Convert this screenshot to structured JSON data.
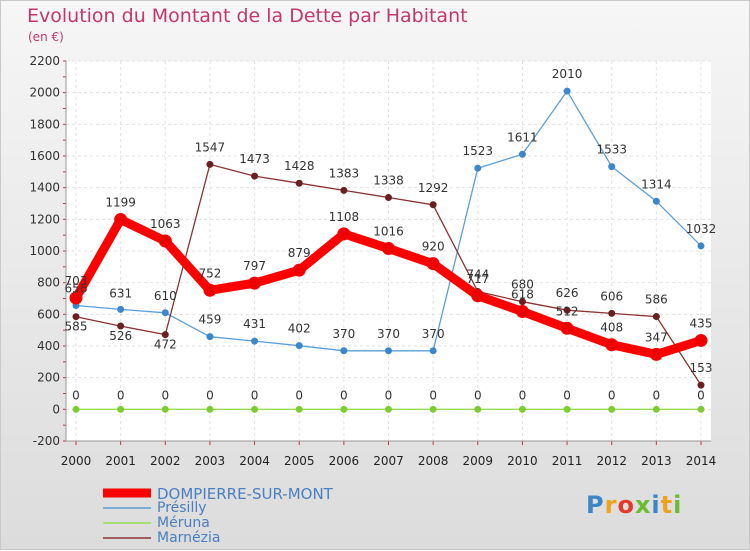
{
  "header": {
    "title": "Evolution du Montant de la Dette par Habitant",
    "unit": "(en €)"
  },
  "brand": {
    "logo_text": "Proxiti"
  },
  "chart_data": {
    "type": "line",
    "x": [
      "2000",
      "2001",
      "2002",
      "2003",
      "2004",
      "2005",
      "2006",
      "2007",
      "2008",
      "2009",
      "2010",
      "2011",
      "2012",
      "2013",
      "2014"
    ],
    "ylim": [
      -200,
      2200
    ],
    "yticks": [
      -200,
      0,
      200,
      400,
      600,
      800,
      1000,
      1200,
      1400,
      1600,
      1800,
      2000,
      2200
    ],
    "grid": true,
    "legend_position": "bottom-left",
    "series": [
      {
        "name": "DOMPIERRE-SUR-MONT",
        "color": "#ff0000",
        "marker": "#ee0000",
        "values": [
          703,
          1199,
          1063,
          752,
          797,
          879,
          1108,
          1016,
          920,
          717,
          618,
          512,
          408,
          347,
          435
        ]
      },
      {
        "name": "Présilly",
        "color": "#5c9fd6",
        "marker": "#3c86cc",
        "values": [
          656,
          631,
          610,
          459,
          431,
          402,
          370,
          370,
          370,
          1523,
          1611,
          2010,
          1533,
          1314,
          1032
        ]
      },
      {
        "name": "Méruna",
        "color": "#99dd55",
        "marker": "#7ccc33",
        "values": [
          0,
          0,
          0,
          0,
          0,
          0,
          0,
          0,
          0,
          0,
          0,
          0,
          0,
          0,
          0
        ]
      },
      {
        "name": "Marnézia",
        "color": "#8a3333",
        "marker": "#6b1f1f",
        "values": [
          585,
          526,
          472,
          1547,
          1473,
          1428,
          1383,
          1338,
          1292,
          744,
          680,
          626,
          606,
          586,
          153
        ]
      }
    ]
  }
}
